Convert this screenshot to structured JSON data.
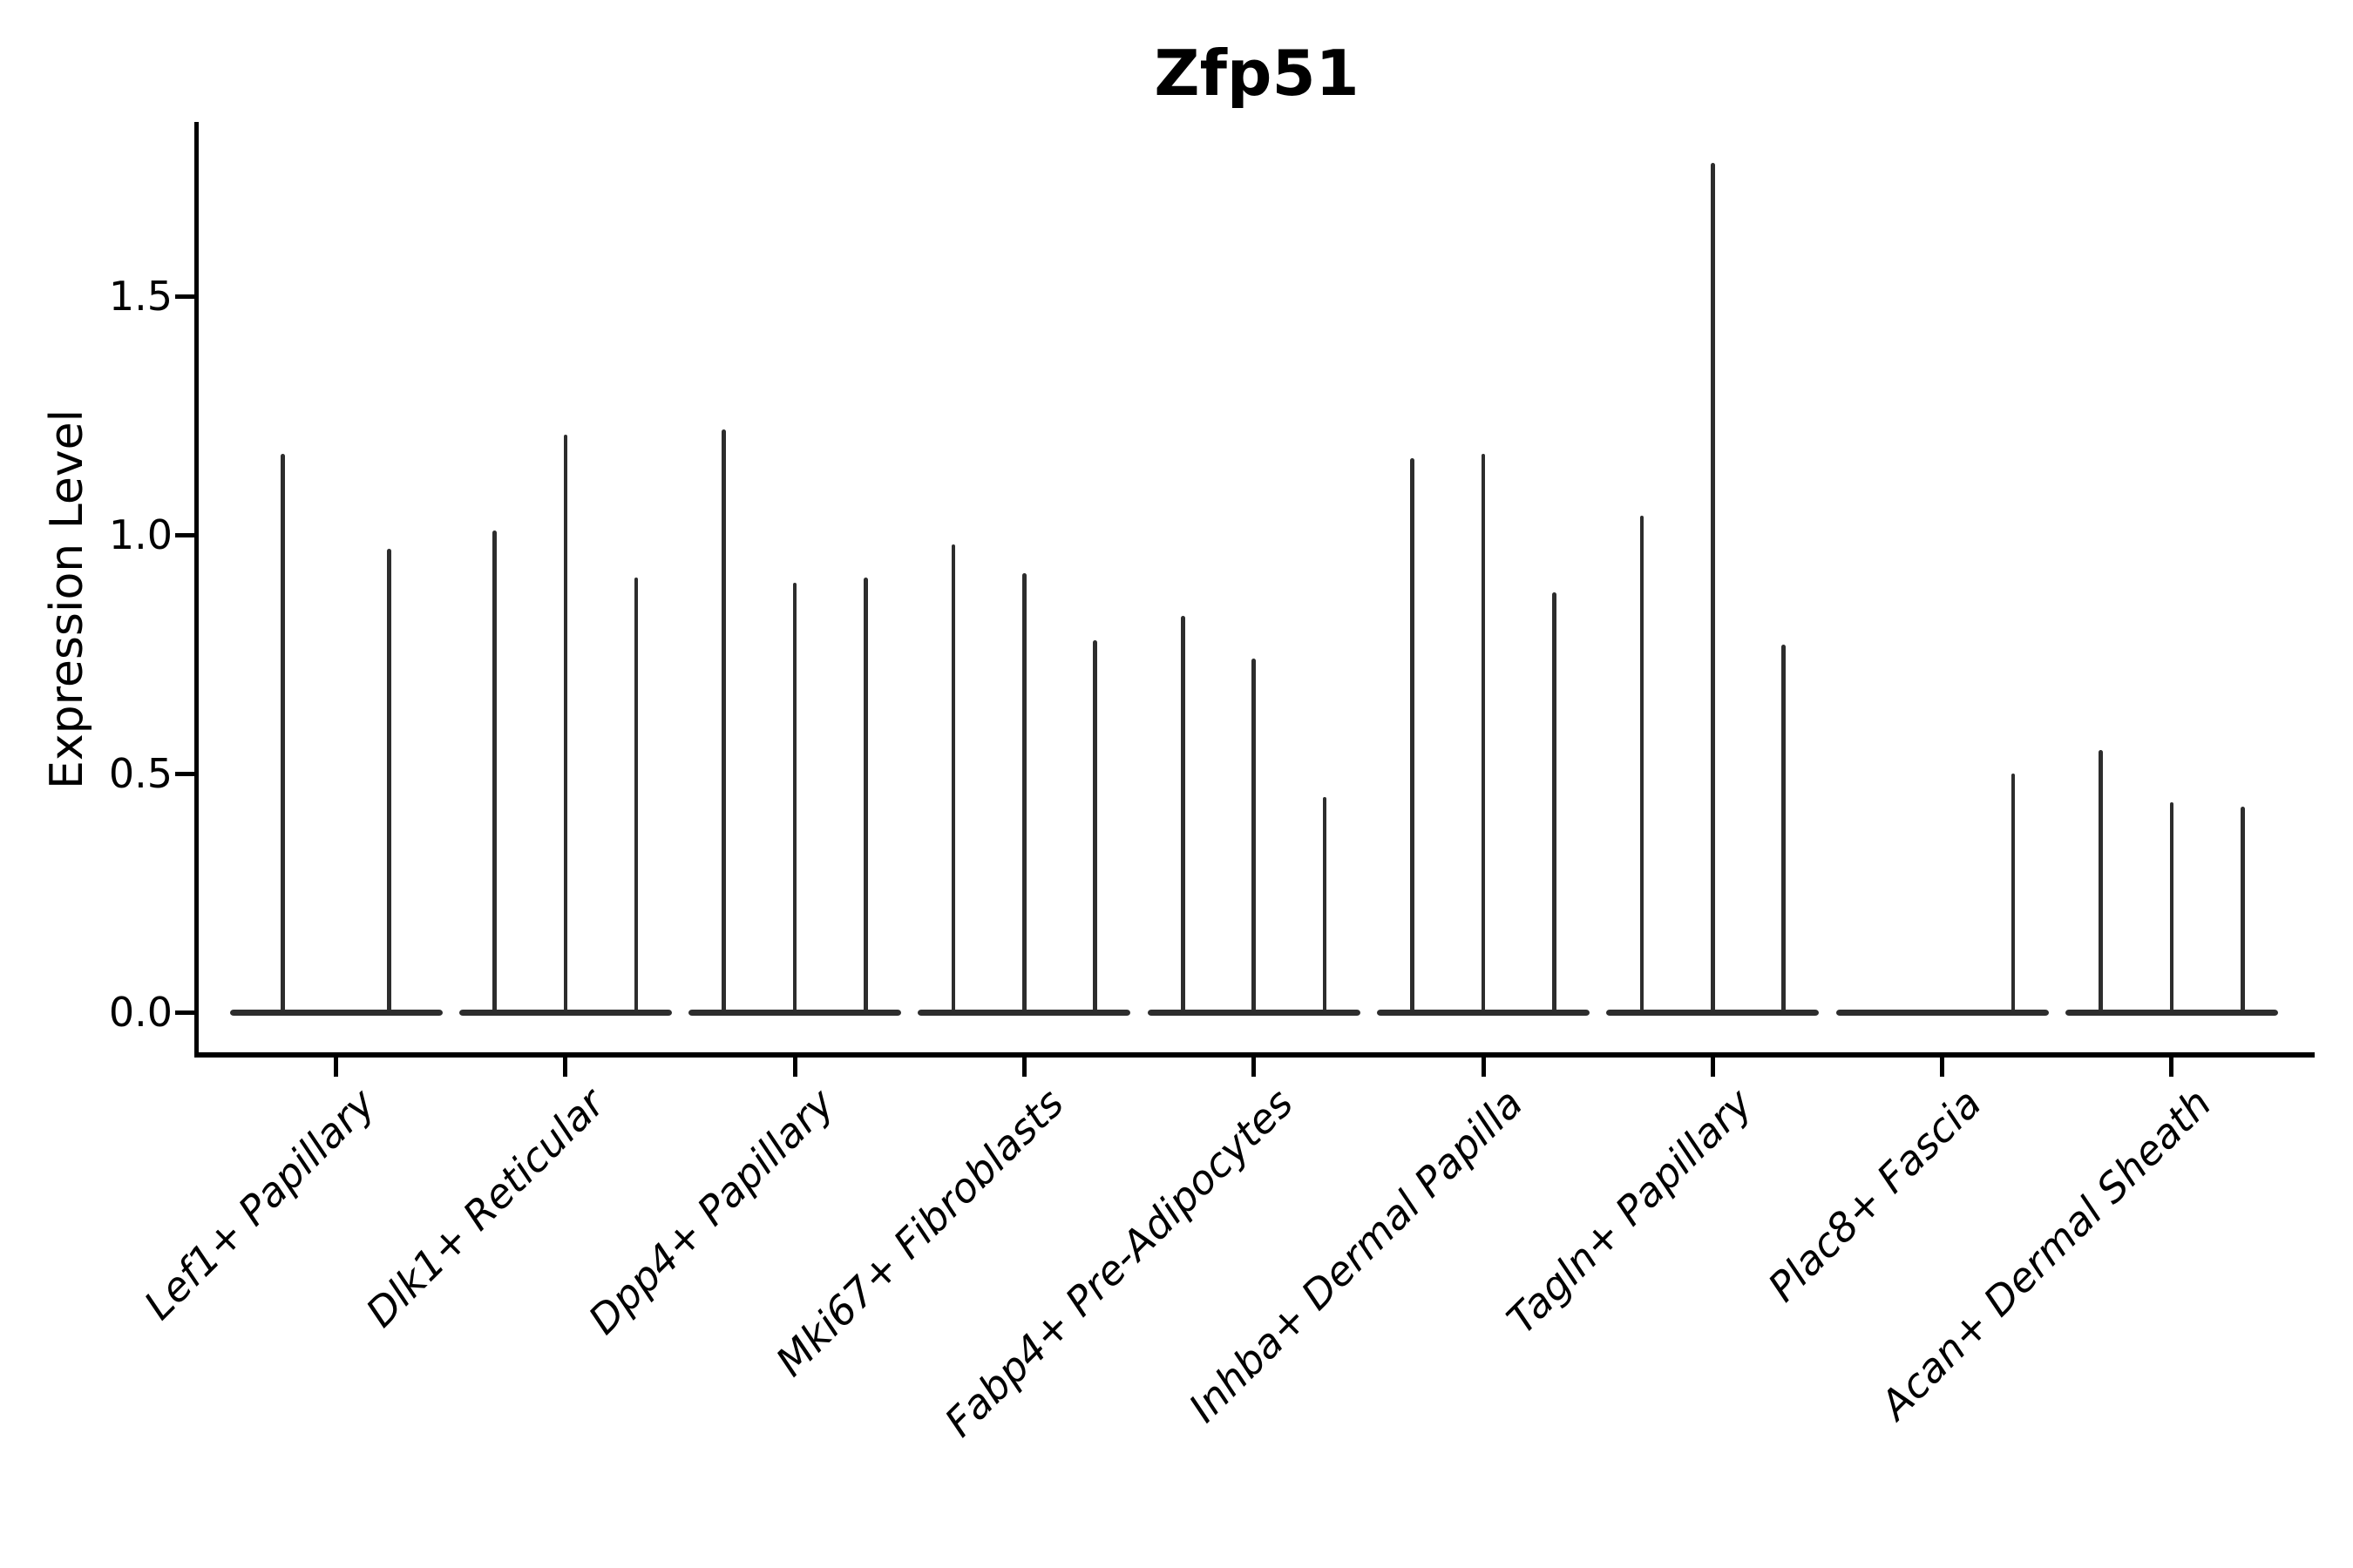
{
  "title": "Zfp51",
  "y_axis": {
    "label": "Expression Level",
    "tick_labels": [
      "0.0",
      "0.5",
      "1.0",
      "1.5"
    ],
    "tick_values": [
      0.0,
      0.5,
      1.0,
      1.5
    ]
  },
  "colors": {
    "violin": "#2d2d2d",
    "axis": "#000000",
    "text": "#000000",
    "background": "#ffffff"
  },
  "chart_data": {
    "type": "violin",
    "title": "Zfp51",
    "xlabel": "",
    "ylabel": "Expression Level",
    "ylim": [
      -0.08,
      1.86
    ],
    "yticks": [
      0.0,
      0.5,
      1.0,
      1.5
    ],
    "grid": false,
    "legend": "none",
    "style": "thin spike violins rising from a flat zero-density baseline lens per category",
    "categories": [
      "Lef1+ Papillary",
      "Dlk1+ Reticular",
      "Dpp4+ Papillary",
      "Mki67+ Fibroblasts",
      "Fabp4+ Pre-Adipocytes",
      "Inhba+ Dermal Papilla",
      "Tagln+ Papillary",
      "Plac8+ Fascia",
      "Acan+ Dermal Sheath"
    ],
    "groups": [
      {
        "category": "Lef1+ Papillary",
        "spike_max_values": [
          1.17,
          0.97
        ]
      },
      {
        "category": "Dlk1+ Reticular",
        "spike_max_values": [
          1.01,
          1.21,
          0.91
        ]
      },
      {
        "category": "Dpp4+ Papillary",
        "spike_max_values": [
          1.22,
          0.9,
          0.91
        ]
      },
      {
        "category": "Mki67+ Fibroblasts",
        "spike_max_values": [
          0.98,
          0.92,
          0.78
        ]
      },
      {
        "category": "Fabp4+ Pre-Adipocytes",
        "spike_max_values": [
          0.83,
          0.74,
          0.45
        ]
      },
      {
        "category": "Inhba+ Dermal Papilla",
        "spike_max_values": [
          1.16,
          1.17,
          0.88
        ]
      },
      {
        "category": "Tagln+ Papillary",
        "spike_max_values": [
          1.04,
          1.78,
          0.77
        ]
      },
      {
        "category": "Plac8+ Fascia",
        "spike_max_values": [
          0.0,
          0.0,
          0.5
        ]
      },
      {
        "category": "Acan+ Dermal Sheath",
        "spike_max_values": [
          0.55,
          0.44,
          0.43
        ]
      }
    ]
  }
}
